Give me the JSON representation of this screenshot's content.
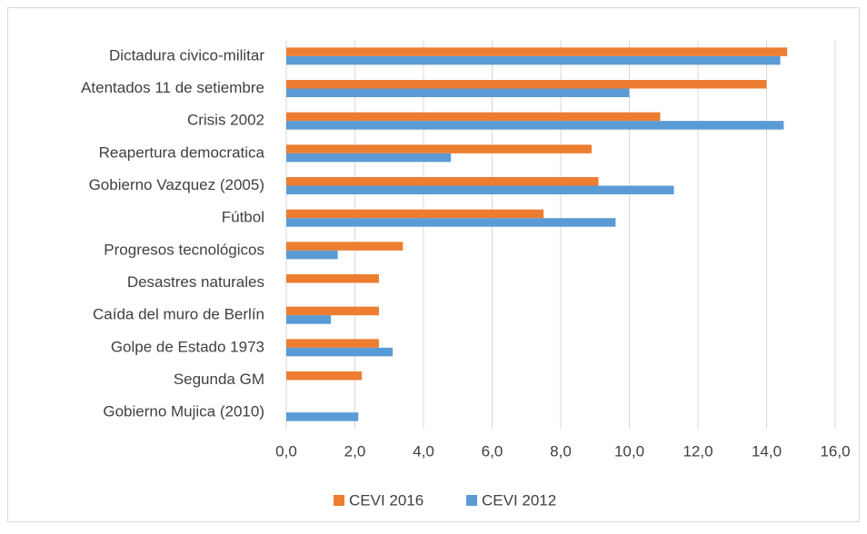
{
  "chart_data": {
    "type": "barh",
    "categories": [
      "Dictadura civico-militar",
      "Atentados 11 de setiembre",
      "Crisis 2002",
      "Reapertura democratica ",
      "Gobierno Vazquez (2005)",
      "Fútbol",
      "Progresos tecnológicos ",
      "Desastres naturales",
      "Caída del muro de Berlín",
      "Golpe de Estado 1973",
      "Segunda GM",
      "Gobierno Mujica (2010)"
    ],
    "series": [
      {
        "name": "CEVI 2016",
        "color": "#ed7d31",
        "values": [
          14.6,
          14.0,
          10.9,
          8.9,
          9.1,
          7.5,
          3.4,
          2.7,
          2.7,
          2.7,
          2.2,
          null
        ]
      },
      {
        "name": "CEVI 2012",
        "color": "#5b9bd5",
        "values": [
          14.4,
          10.0,
          14.5,
          4.8,
          11.3,
          9.6,
          1.5,
          null,
          1.3,
          3.1,
          null,
          2.1
        ]
      }
    ],
    "xlim": [
      0,
      16
    ],
    "xticks": [
      {
        "value": 0,
        "label": "0,0"
      },
      {
        "value": 2,
        "label": "2,0"
      },
      {
        "value": 4,
        "label": "4,0"
      },
      {
        "value": 6,
        "label": "6,0"
      },
      {
        "value": 8,
        "label": "8,0"
      },
      {
        "value": 10,
        "label": "10,0"
      },
      {
        "value": 12,
        "label": "12,0"
      },
      {
        "value": 14,
        "label": "14,0"
      },
      {
        "value": 16,
        "label": "16,0"
      }
    ],
    "grid": true,
    "legend": "bottom"
  }
}
